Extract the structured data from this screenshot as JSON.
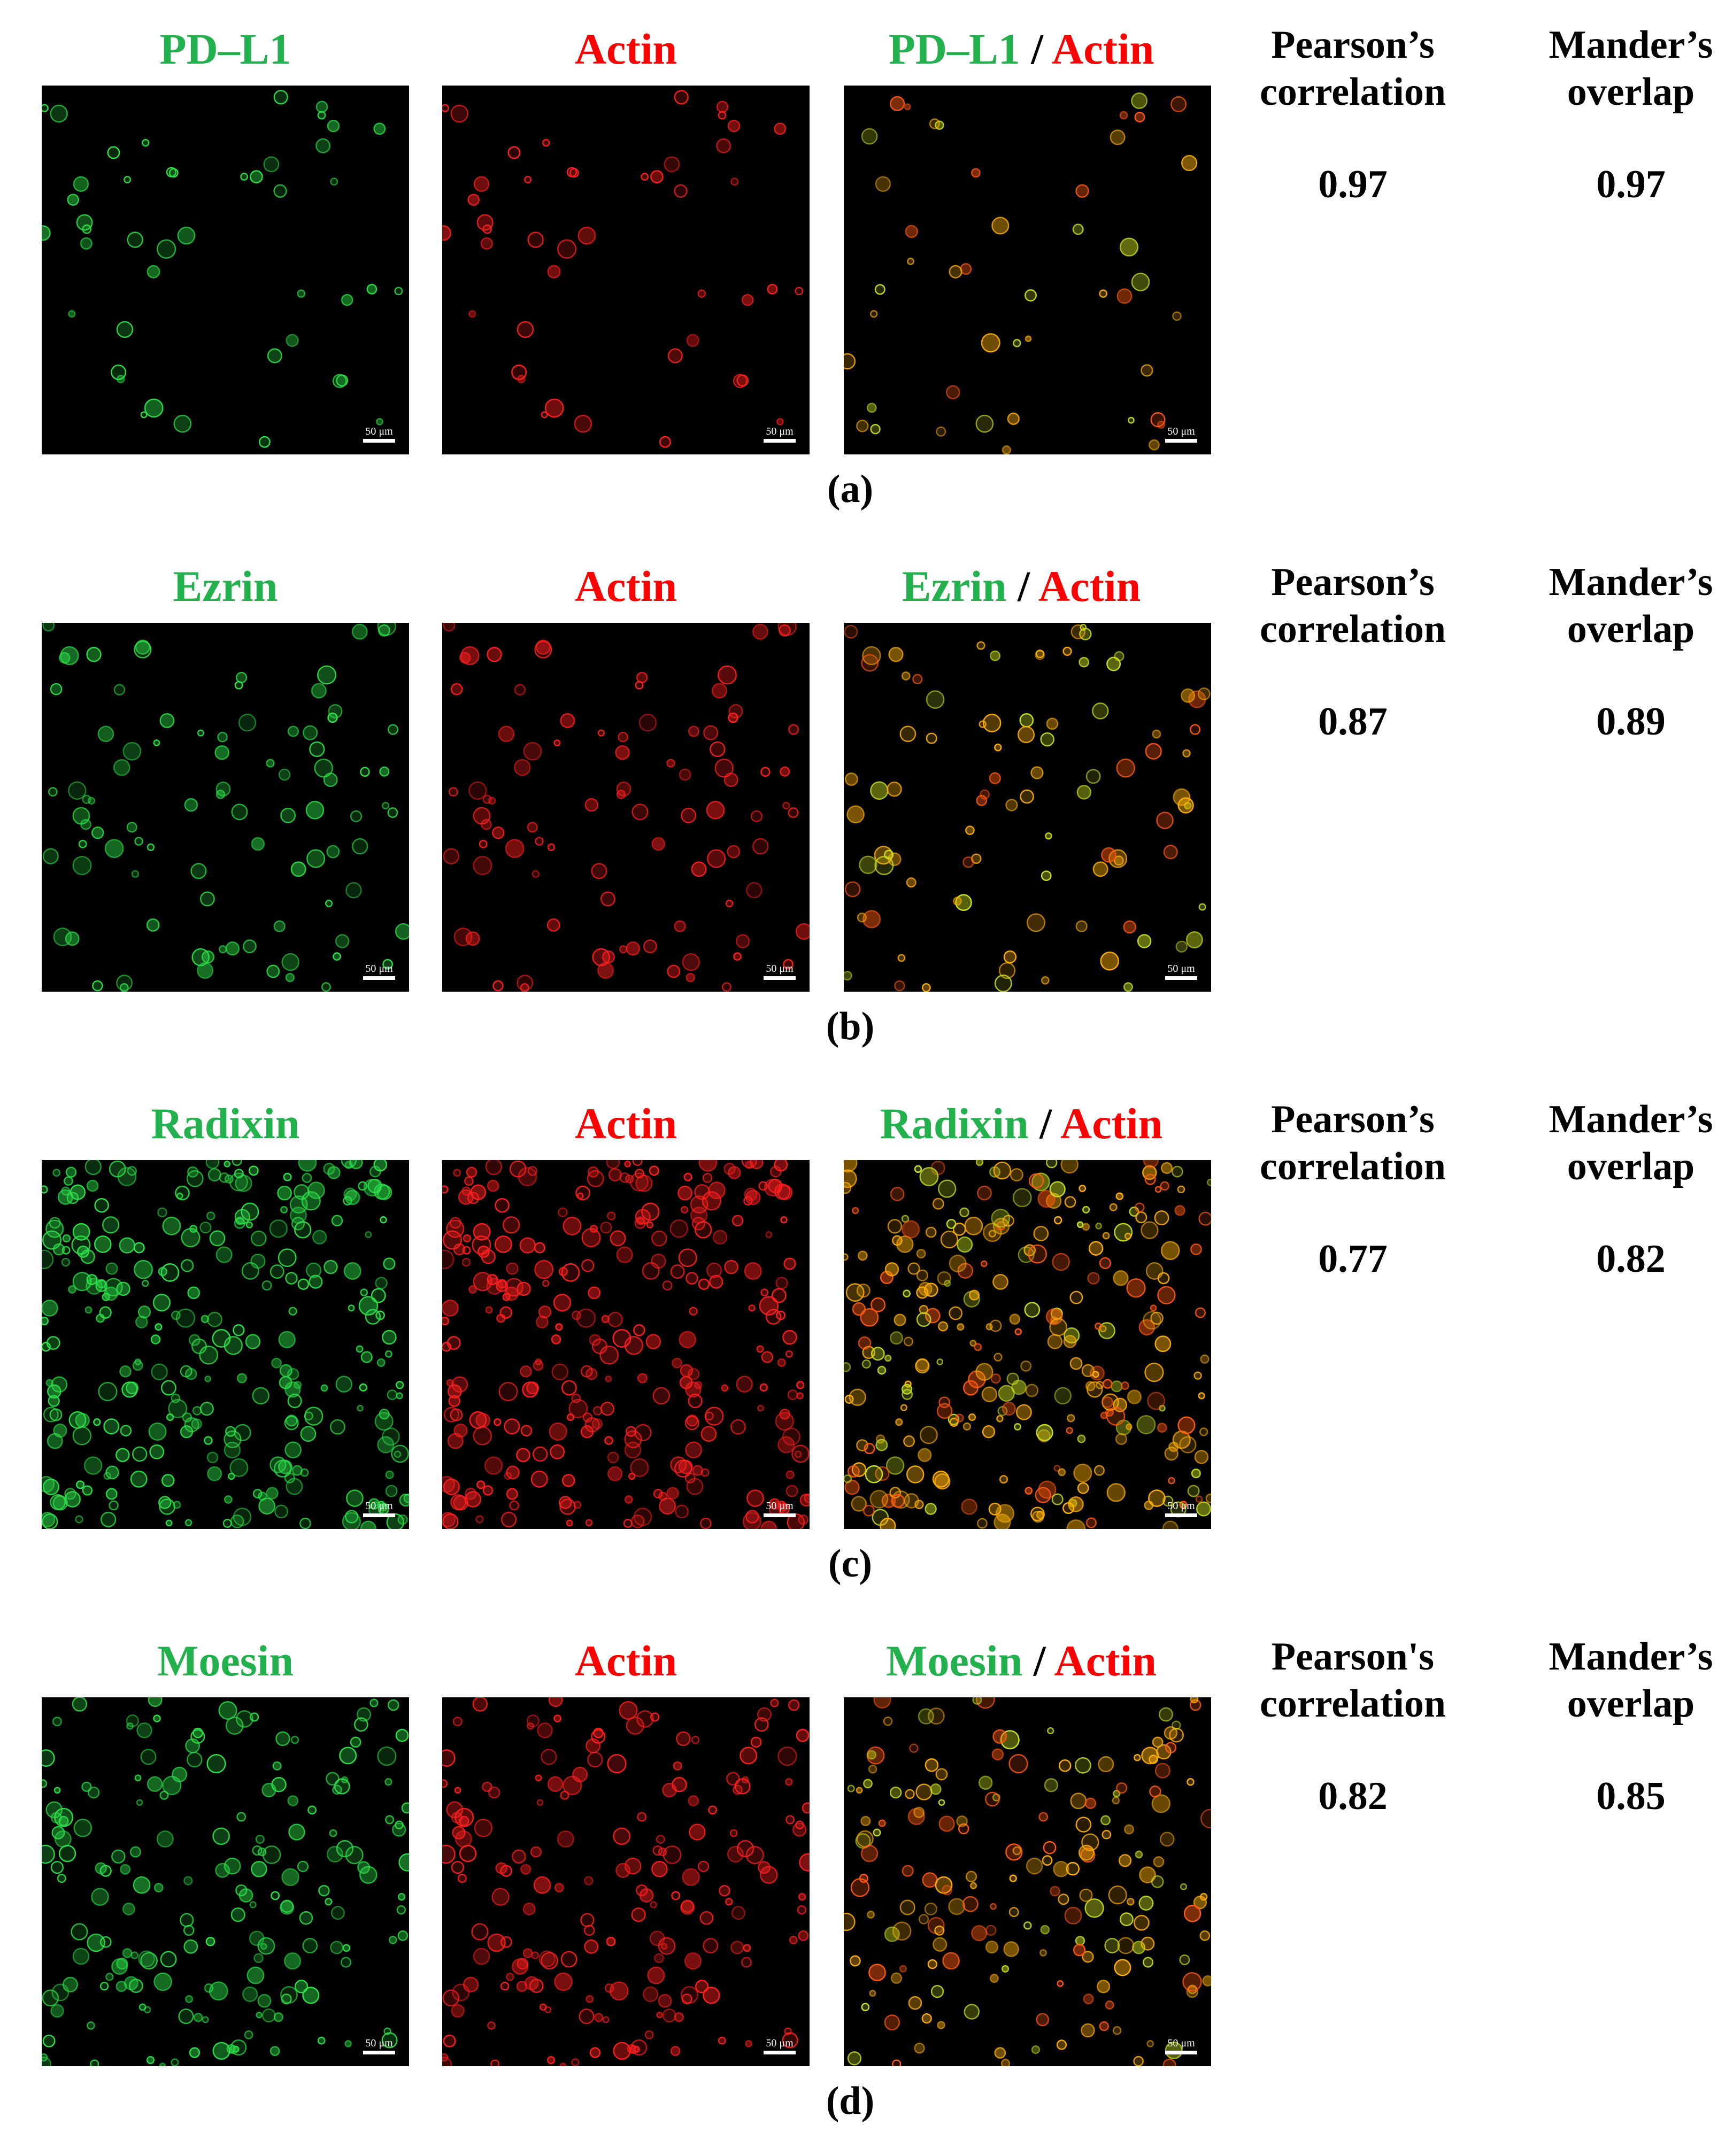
{
  "scale_label": "50 μm",
  "actin_label": "Actin",
  "separator": "/",
  "stat_headers": {
    "pearson": [
      "Pearson’s",
      "correlation"
    ],
    "pearson_alt": [
      "Pearson's",
      "correlation"
    ],
    "mander": [
      "Mander’s",
      "overlap"
    ]
  },
  "panels": [
    {
      "protein": "PD–L1",
      "pearson": "0.97",
      "mander": "0.97",
      "label": "(a)"
    },
    {
      "protein": "Ezrin",
      "pearson": "0.87",
      "mander": "0.89",
      "label": "(b)"
    },
    {
      "protein": "Radixin",
      "pearson": "0.77",
      "mander": "0.82",
      "label": "(c)"
    },
    {
      "protein": "Moesin",
      "pearson": "0.82",
      "mander": "0.85",
      "label": "(d)"
    }
  ],
  "colors": {
    "green_channel": "#22b14c",
    "red_channel": "#ff0000",
    "merge": "#ffb000"
  }
}
